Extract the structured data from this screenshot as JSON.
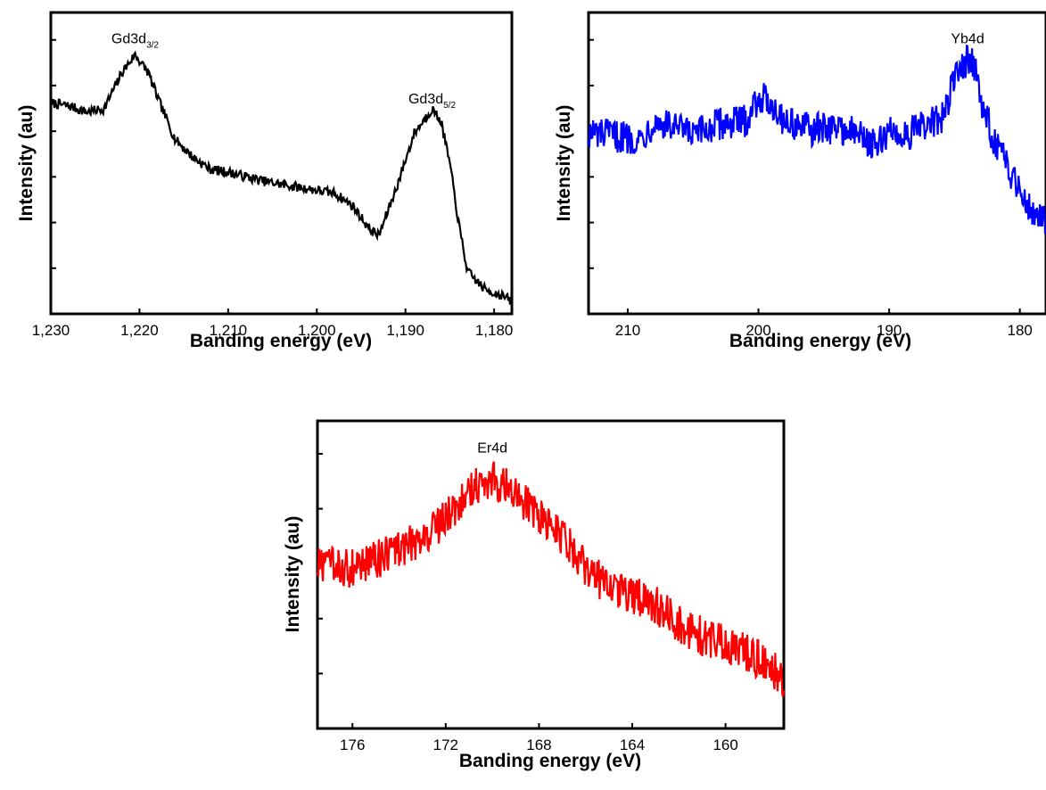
{
  "chart_data": [
    {
      "id": "gd",
      "type": "line",
      "xlabel": "Banding energy (eV)",
      "ylabel": "Intensity (au)",
      "xlim": [
        1230,
        1178
      ],
      "x_reversed": true,
      "x_ticks": [
        1230,
        1220,
        1210,
        1200,
        1190,
        1180
      ],
      "x_tick_labels": [
        "1,230",
        "1,220",
        "1,210",
        "1,200",
        "1,190",
        "1,180"
      ],
      "ylim": [
        0,
        100
      ],
      "y_tick_labels_shown": false,
      "color": "#000000",
      "annotations": [
        {
          "text": "Gd3d",
          "sub": "3/2",
          "x": 1220.5,
          "y": 88
        },
        {
          "text": "Gd3d",
          "sub": "5/2",
          "x": 1187,
          "y": 68
        }
      ],
      "points": [
        [
          1230,
          70
        ],
        [
          1228,
          69
        ],
        [
          1226,
          67
        ],
        [
          1224,
          68
        ],
        [
          1222,
          80
        ],
        [
          1220.5,
          86
        ],
        [
          1219,
          80
        ],
        [
          1218,
          72
        ],
        [
          1216,
          58
        ],
        [
          1214,
          52
        ],
        [
          1212,
          48
        ],
        [
          1210,
          47
        ],
        [
          1206,
          44
        ],
        [
          1202,
          42
        ],
        [
          1198,
          40
        ],
        [
          1196,
          36
        ],
        [
          1194,
          28
        ],
        [
          1193,
          26
        ],
        [
          1191,
          42
        ],
        [
          1189,
          60
        ],
        [
          1187,
          68
        ],
        [
          1186,
          64
        ],
        [
          1185,
          50
        ],
        [
          1184,
          30
        ],
        [
          1183,
          14
        ],
        [
          1181,
          8
        ],
        [
          1179,
          6
        ],
        [
          1178,
          4
        ]
      ]
    },
    {
      "id": "yb",
      "type": "line",
      "xlabel": "Banding energy (eV)",
      "ylabel": "Intensity (au)",
      "xlim": [
        213,
        178
      ],
      "x_reversed": true,
      "x_ticks": [
        210,
        200,
        190,
        180
      ],
      "x_tick_labels": [
        "210",
        "200",
        "190",
        "180"
      ],
      "ylim": [
        0,
        100
      ],
      "y_tick_labels_shown": false,
      "color": "#0000ff",
      "annotations": [
        {
          "text": "Yb4d",
          "sub": "",
          "x": 184,
          "y": 88
        }
      ],
      "points": [
        [
          213,
          60
        ],
        [
          211,
          59
        ],
        [
          209,
          58
        ],
        [
          208,
          64
        ],
        [
          206,
          61
        ],
        [
          205,
          59
        ],
        [
          203,
          63
        ],
        [
          201,
          64
        ],
        [
          200,
          72
        ],
        [
          199,
          70
        ],
        [
          198,
          64
        ],
        [
          196,
          61
        ],
        [
          194,
          62
        ],
        [
          192,
          59
        ],
        [
          191,
          55
        ],
        [
          190,
          61
        ],
        [
          189,
          59
        ],
        [
          187,
          63
        ],
        [
          186,
          64
        ],
        [
          185,
          78
        ],
        [
          184,
          85
        ],
        [
          183.5,
          83
        ],
        [
          183,
          70
        ],
        [
          182,
          58
        ],
        [
          181,
          49
        ],
        [
          180,
          42
        ],
        [
          179,
          34
        ],
        [
          178,
          31
        ]
      ]
    },
    {
      "id": "er",
      "type": "line",
      "xlabel": "Banding energy (eV)",
      "ylabel": "Intensity (au)",
      "xlim": [
        177.5,
        157.5
      ],
      "x_reversed": true,
      "x_ticks": [
        176,
        172,
        168,
        164,
        160
      ],
      "x_tick_labels": [
        "176",
        "172",
        "168",
        "164",
        "160"
      ],
      "ylim": [
        0,
        100
      ],
      "y_tick_labels_shown": false,
      "color": "#ff0000",
      "annotations": [
        {
          "text": "Er4d",
          "sub": "",
          "x": 170,
          "y": 88
        }
      ],
      "points": [
        [
          177.5,
          53
        ],
        [
          176,
          52
        ],
        [
          175,
          55
        ],
        [
          174,
          58
        ],
        [
          173,
          62
        ],
        [
          172,
          68
        ],
        [
          171.5,
          73
        ],
        [
          171,
          78
        ],
        [
          170.5,
          80
        ],
        [
          170,
          81
        ],
        [
          169.5,
          79
        ],
        [
          169,
          76
        ],
        [
          168,
          70
        ],
        [
          167,
          62
        ],
        [
          166,
          52
        ],
        [
          165,
          46
        ],
        [
          164,
          43
        ],
        [
          163,
          40
        ],
        [
          162,
          34
        ],
        [
          161,
          30
        ],
        [
          160,
          27
        ],
        [
          159,
          24
        ],
        [
          158,
          20
        ],
        [
          157.5,
          16
        ]
      ]
    }
  ]
}
